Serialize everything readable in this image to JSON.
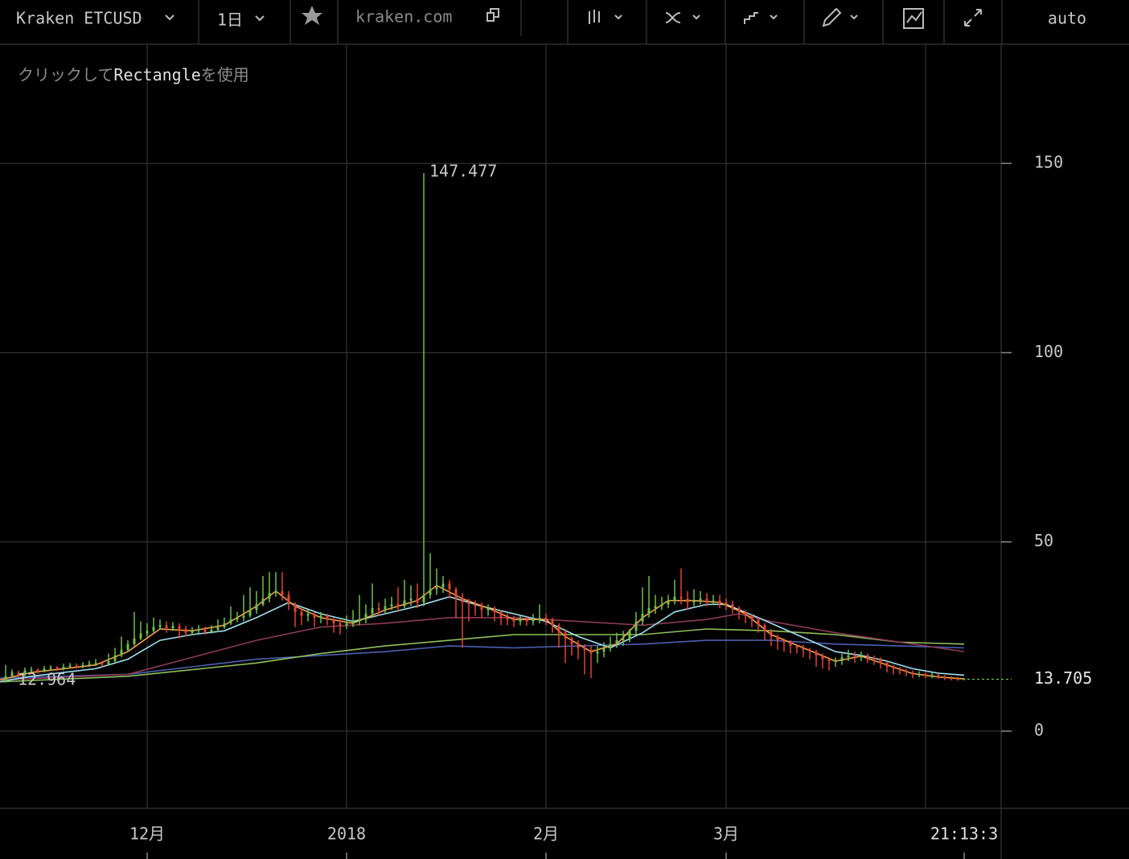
{
  "toolbar": {
    "symbol": "Kraken ETCUSD",
    "interval": "1日",
    "site": "kraken.com",
    "scale_mode": "auto"
  },
  "hint": [
    "クリックして",
    "Rectangle",
    "を使用"
  ],
  "chart_data": {
    "type": "candlestick",
    "time_label": "21:13:3",
    "up_color": "#6cc04a",
    "down_color": "#e0442f",
    "xlim": [
      0.125,
      155.75
    ],
    "xticks": [
      {
        "value": 23,
        "label": "12月"
      },
      {
        "value": 54,
        "label": "2018"
      },
      {
        "value": 85,
        "label": "2月"
      },
      {
        "value": 113,
        "label": "3月"
      },
      {
        "value": 144,
        "label": null
      }
    ],
    "ylim": [
      -20.4,
      181.5
    ],
    "yticks": [
      0,
      50,
      100,
      150
    ],
    "grid": true,
    "x": [
      0,
      1,
      2,
      3,
      4,
      5,
      6,
      7,
      8,
      9,
      10,
      11,
      12,
      13,
      14,
      15,
      16,
      17,
      18,
      19,
      20,
      21,
      22,
      23,
      24,
      25,
      26,
      27,
      28,
      29,
      30,
      31,
      32,
      33,
      34,
      35,
      36,
      37,
      38,
      39,
      40,
      41,
      42,
      43,
      44,
      45,
      46,
      47,
      48,
      49,
      50,
      51,
      52,
      53,
      54,
      55,
      56,
      57,
      58,
      59,
      60,
      61,
      62,
      63,
      64,
      65,
      66,
      67,
      68,
      69,
      70,
      71,
      72,
      73,
      74,
      75,
      76,
      77,
      78,
      79,
      80,
      81,
      82,
      83,
      84,
      85,
      86,
      87,
      88,
      89,
      90,
      91,
      92,
      93,
      94,
      95,
      96,
      97,
      98,
      99,
      100,
      101,
      102,
      103,
      104,
      105,
      106,
      107,
      108,
      109,
      110,
      111,
      112,
      113,
      114,
      115,
      116,
      117,
      118,
      119,
      120,
      121,
      122,
      123,
      124,
      125,
      126,
      127,
      128,
      129,
      130,
      131,
      132,
      133,
      134,
      135,
      136,
      137,
      138,
      139,
      140,
      141,
      142,
      143,
      144,
      145,
      146,
      147,
      148,
      149,
      150
    ],
    "open": [
      12.964,
      13.0,
      14.5,
      15.5,
      14.8,
      16.0,
      16.2,
      15.8,
      16.5,
      16.8,
      16.4,
      17.0,
      17.3,
      16.9,
      17.5,
      17.8,
      18.0,
      17.6,
      18.5,
      20.0,
      21.5,
      23.0,
      24.5,
      25.8,
      26.5,
      27.5,
      28.0,
      27.2,
      27.8,
      27.0,
      26.0,
      26.5,
      27.0,
      26.2,
      26.8,
      27.5,
      28.5,
      29.5,
      30.0,
      30.5,
      32.0,
      33.5,
      35.0,
      36.5,
      37.0,
      36.0,
      33.5,
      31.5,
      30.5,
      31.0,
      30.0,
      30.5,
      29.5,
      28.5,
      28.0,
      28.5,
      29.0,
      29.5,
      31.0,
      32.5,
      32.0,
      33.0,
      33.5,
      33.0,
      34.5,
      35.0,
      34.0,
      36.0,
      37.5,
      38.0,
      39.0,
      37.5,
      35.0,
      34.0,
      33.5,
      33.0,
      32.0,
      32.5,
      31.5,
      30.0,
      29.5,
      29.0,
      29.5,
      29.0,
      29.5,
      30.0,
      29.5,
      28.0,
      26.0,
      24.5,
      23.0,
      22.0,
      21.5,
      20.5,
      21.0,
      22.0,
      23.0,
      24.0,
      24.5,
      26.5,
      29.0,
      31.0,
      32.5,
      33.0,
      33.5,
      34.5,
      35.5,
      35.0,
      34.0,
      34.5,
      35.0,
      34.5,
      34.5,
      34.0,
      33.5,
      32.5,
      31.5,
      30.5,
      29.5,
      28.0,
      26.5,
      25.0,
      24.0,
      23.5,
      22.5,
      22.0,
      21.5,
      21.0,
      20.0,
      19.0,
      18.5,
      18.5,
      19.5,
      20.0,
      19.5,
      20.0,
      19.5,
      19.0,
      18.0,
      17.0,
      16.5,
      16.0,
      15.5,
      15.0,
      15.0,
      14.5,
      14.8,
      14.2,
      14.0,
      13.8,
      13.7
    ],
    "high": [
      14.2,
      17.5,
      16.3,
      16.0,
      16.8,
      17.0,
      16.6,
      17.2,
      17.4,
      17.2,
      17.8,
      18.0,
      17.9,
      18.2,
      18.6,
      19.0,
      18.5,
      20.5,
      22.0,
      25.0,
      24.0,
      31.5,
      29.0,
      28.5,
      30.0,
      29.5,
      29.0,
      28.8,
      28.5,
      27.8,
      27.5,
      28.0,
      27.6,
      28.0,
      29.5,
      30.0,
      33.0,
      31.5,
      36.0,
      38.0,
      37.0,
      41.0,
      42.0,
      42.0,
      42.0,
      37.0,
      34.0,
      32.5,
      32.0,
      31.5,
      31.5,
      31.0,
      30.0,
      29.5,
      30.5,
      32.0,
      36.0,
      33.5,
      39.0,
      34.0,
      35.0,
      35.5,
      38.0,
      40.0,
      38.5,
      39.0,
      147.477,
      47.0,
      43.0,
      41.0,
      40.0,
      38.0,
      36.5,
      35.0,
      34.5,
      34.0,
      33.5,
      33.0,
      32.0,
      31.0,
      30.5,
      30.5,
      30.2,
      31.0,
      33.5,
      31.0,
      30.0,
      28.5,
      27.0,
      25.0,
      24.0,
      23.0,
      22.5,
      22.5,
      23.5,
      25.0,
      26.0,
      26.5,
      27.0,
      31.5,
      38.0,
      41.0,
      36.0,
      35.5,
      36.0,
      40.0,
      43.0,
      37.0,
      37.5,
      37.0,
      36.5,
      36.0,
      36.0,
      35.0,
      34.5,
      33.0,
      32.0,
      31.0,
      30.0,
      28.5,
      27.0,
      25.5,
      24.5,
      24.0,
      23.0,
      22.8,
      22.0,
      21.5,
      20.5,
      19.5,
      19.5,
      20.5,
      21.5,
      21.0,
      21.0,
      20.5,
      20.0,
      19.5,
      18.5,
      17.5,
      17.0,
      16.5,
      16.0,
      15.8,
      15.5,
      15.5,
      15.2,
      14.8,
      14.5,
      14.3,
      14.0
    ],
    "low": [
      12.3,
      12.8,
      14.0,
      14.2,
      14.5,
      15.5,
      15.2,
      15.5,
      16.0,
      15.9,
      16.0,
      16.6,
      16.5,
      16.6,
      17.0,
      17.2,
      17.0,
      17.3,
      18.0,
      19.5,
      21.0,
      22.5,
      24.0,
      25.0,
      26.0,
      26.8,
      26.0,
      26.5,
      24.5,
      25.0,
      25.5,
      25.8,
      25.5,
      25.8,
      26.2,
      27.0,
      28.0,
      28.8,
      29.0,
      30.0,
      31.0,
      33.0,
      34.0,
      35.5,
      34.5,
      32.0,
      27.5,
      28.0,
      29.0,
      27.5,
      28.5,
      28.0,
      26.0,
      25.5,
      27.0,
      27.5,
      28.0,
      28.5,
      30.0,
      30.5,
      31.0,
      32.0,
      31.5,
      32.5,
      33.0,
      32.5,
      33.0,
      35.0,
      36.0,
      36.5,
      35.0,
      30.0,
      22.0,
      29.0,
      30.5,
      30.0,
      30.5,
      29.0,
      28.0,
      28.0,
      27.5,
      28.0,
      27.8,
      28.0,
      28.5,
      28.0,
      26.0,
      22.0,
      18.0,
      20.0,
      19.0,
      15.0,
      14.0,
      18.0,
      19.5,
      21.0,
      22.0,
      22.5,
      23.5,
      25.5,
      28.0,
      30.0,
      31.0,
      32.0,
      32.5,
      33.5,
      33.5,
      32.0,
      33.0,
      33.5,
      33.0,
      33.5,
      32.5,
      32.0,
      31.0,
      29.5,
      28.5,
      27.5,
      26.0,
      24.0,
      22.5,
      21.5,
      21.0,
      20.5,
      20.5,
      19.5,
      19.0,
      17.0,
      16.5,
      16.0,
      17.0,
      17.5,
      18.5,
      18.0,
      18.5,
      18.0,
      17.5,
      16.5,
      15.5,
      15.0,
      15.0,
      14.5,
      14.0,
      14.2,
      14.0,
      14.0,
      13.8,
      13.5,
      13.4,
      13.3,
      13.5
    ],
    "close": [
      13.0,
      14.5,
      15.5,
      14.8,
      16.0,
      16.2,
      15.8,
      16.5,
      16.8,
      16.4,
      17.0,
      17.3,
      16.9,
      17.5,
      17.8,
      18.0,
      17.6,
      18.5,
      20.0,
      21.5,
      23.0,
      24.5,
      25.8,
      26.5,
      27.5,
      28.0,
      27.2,
      27.8,
      27.0,
      26.0,
      26.5,
      27.0,
      26.2,
      26.8,
      27.5,
      28.5,
      29.5,
      30.0,
      30.5,
      32.0,
      33.5,
      35.0,
      36.5,
      37.0,
      36.0,
      33.5,
      31.5,
      30.5,
      31.0,
      30.0,
      30.5,
      29.5,
      28.5,
      28.0,
      28.5,
      29.0,
      29.5,
      31.0,
      32.5,
      32.0,
      33.0,
      33.5,
      33.0,
      34.5,
      35.0,
      34.0,
      36.0,
      37.5,
      38.0,
      39.0,
      37.5,
      35.0,
      34.0,
      33.5,
      33.0,
      32.0,
      32.5,
      31.5,
      30.0,
      29.5,
      29.0,
      29.5,
      29.0,
      29.5,
      30.0,
      29.5,
      28.0,
      26.0,
      24.5,
      23.0,
      22.0,
      21.5,
      20.5,
      21.0,
      22.0,
      23.0,
      24.0,
      24.5,
      26.5,
      29.0,
      31.0,
      32.5,
      33.0,
      33.5,
      34.5,
      35.5,
      35.0,
      34.0,
      34.5,
      35.0,
      34.5,
      34.5,
      34.0,
      33.5,
      32.5,
      31.5,
      30.5,
      29.5,
      28.0,
      26.5,
      25.0,
      24.0,
      23.5,
      22.5,
      22.0,
      21.5,
      21.0,
      20.0,
      19.0,
      18.5,
      18.5,
      19.5,
      20.0,
      19.5,
      20.0,
      19.5,
      19.0,
      18.0,
      17.0,
      16.5,
      16.0,
      15.5,
      15.0,
      15.0,
      14.5,
      14.8,
      14.2,
      14.0,
      13.8,
      13.7,
      13.705
    ],
    "series": [
      {
        "color": "#4c5fb0",
        "x": [
          0,
          20,
          40,
          50,
          60,
          70,
          80,
          90,
          100,
          110,
          120,
          130,
          140,
          150
        ],
        "values": [
          14,
          15,
          19,
          20,
          21,
          22.5,
          22,
          22.5,
          23,
          24,
          24,
          23,
          22.5,
          22
        ]
      },
      {
        "color": "#8fbf5a",
        "x": [
          0,
          20,
          40,
          50,
          60,
          70,
          80,
          90,
          100,
          110,
          120,
          130,
          140,
          150
        ],
        "values": [
          13,
          14.5,
          18,
          20.5,
          22.5,
          24,
          25.5,
          25.5,
          25.5,
          27,
          26.5,
          25.5,
          23.5,
          23
        ]
      },
      {
        "color": "#8a3b55",
        "x": [
          0,
          20,
          40,
          50,
          60,
          70,
          80,
          90,
          100,
          110,
          115,
          120,
          130,
          140,
          150
        ],
        "values": [
          13.5,
          15,
          24,
          27.5,
          28.5,
          30,
          30,
          29,
          28,
          29.5,
          31,
          29,
          26,
          23.5,
          21
        ]
      },
      {
        "color": "#a0e0f0",
        "x": [
          0,
          5,
          10,
          15,
          20,
          25,
          30,
          35,
          40,
          45,
          50,
          55,
          60,
          65,
          70,
          75,
          80,
          85,
          90,
          95,
          100,
          105,
          110,
          113,
          118,
          122,
          126,
          130,
          134,
          138,
          142,
          146,
          150
        ],
        "values": [
          13,
          14.5,
          15.5,
          16.5,
          19,
          24,
          25.5,
          26.5,
          30,
          34,
          31,
          29,
          31,
          33,
          35.5,
          33,
          31,
          29,
          25,
          22,
          26,
          31.5,
          33.5,
          33.5,
          30,
          27,
          24,
          21,
          20,
          18.5,
          16.5,
          15.3,
          14.8
        ]
      },
      {
        "color": "#f0a050",
        "x": [
          0,
          5,
          10,
          15,
          20,
          25,
          30,
          35,
          40,
          43,
          46,
          50,
          55,
          60,
          65,
          68,
          72,
          76,
          80,
          85,
          88,
          92,
          96,
          100,
          104,
          108,
          112,
          116,
          120,
          125,
          130,
          134,
          138,
          142,
          146,
          150
        ],
        "values": [
          13.5,
          15.5,
          16.5,
          17.5,
          21,
          27,
          26.5,
          28,
          33,
          37,
          33,
          30,
          28.5,
          32,
          34.5,
          38.5,
          35,
          32.5,
          29.5,
          29.5,
          25,
          21,
          23,
          30,
          34.5,
          34.5,
          34,
          31,
          25.5,
          22,
          18.5,
          19.8,
          17.5,
          15.2,
          14.3,
          13.8
        ]
      }
    ]
  }
}
